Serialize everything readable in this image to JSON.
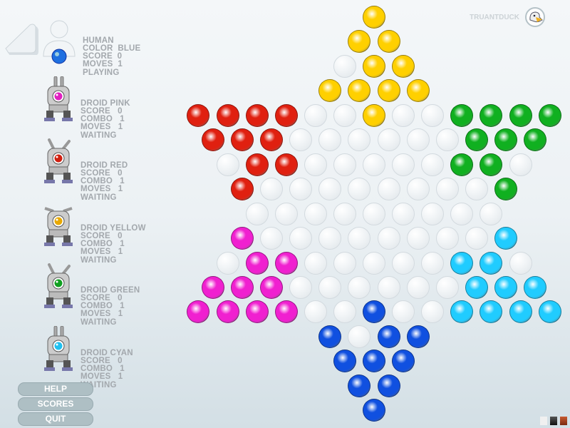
{
  "brand": {
    "name": "TRUANTDUCK",
    "logo_icon": "duck-head-icon"
  },
  "players": [
    {
      "lines": [
        "HUMAN",
        "COLOR  BLUE",
        "SCORE  0",
        "MOVES  1",
        "PLAYING"
      ],
      "color": "#1f6fe0"
    },
    {
      "lines": [
        "DROID PINK",
        "SCORE   0",
        "COMBO   1",
        "MOVES   1",
        "WAITING"
      ],
      "color": "#e020c0"
    },
    {
      "lines": [
        "DROID RED",
        "SCORE   0",
        "COMBO   1",
        "MOVES   1",
        "WAITING"
      ],
      "color": "#d02010"
    },
    {
      "lines": [
        "DROID YELLOW",
        "SCORE   0",
        "COMBO   1",
        "MOVES   1",
        "WAITING"
      ],
      "color": "#e8a800"
    },
    {
      "lines": [
        "DROID GREEN",
        "SCORE   0",
        "COMBO   1",
        "MOVES   1",
        "WAITING"
      ],
      "color": "#10a020"
    },
    {
      "lines": [
        "DROID CYAN",
        "SCORE   0",
        "COMBO   1",
        "MOVES   1",
        "WAITING"
      ],
      "color": "#20c0f0"
    }
  ],
  "buttons": {
    "help": "HELP",
    "scores": "SCORES",
    "quit": "QUIT"
  },
  "marble_colors": {
    "Y": "#ffd000",
    "R": "#e02010",
    "G": "#10b020",
    "P": "#f020d0",
    "C": "#20ccff",
    "B": "#1050e0"
  },
  "board": [
    "Y",
    "YY",
    "EYY",
    "YYYY",
    "RRRREEYEEGGGG",
    "RRREEEEEEGGG",
    "ERREEEEEGGE",
    "REEEEEEEEG",
    "EEEEEEEEE",
    "PEEEEEEEEC",
    "EPPEEEEECCE",
    "PPPEEEEEECCC",
    "PPPPEEBEECCCC",
    "BEBB",
    "BBB",
    "BB",
    "B"
  ],
  "theme_swatches": [
    "#f0f0f0",
    "#222222",
    "#a0401c"
  ]
}
